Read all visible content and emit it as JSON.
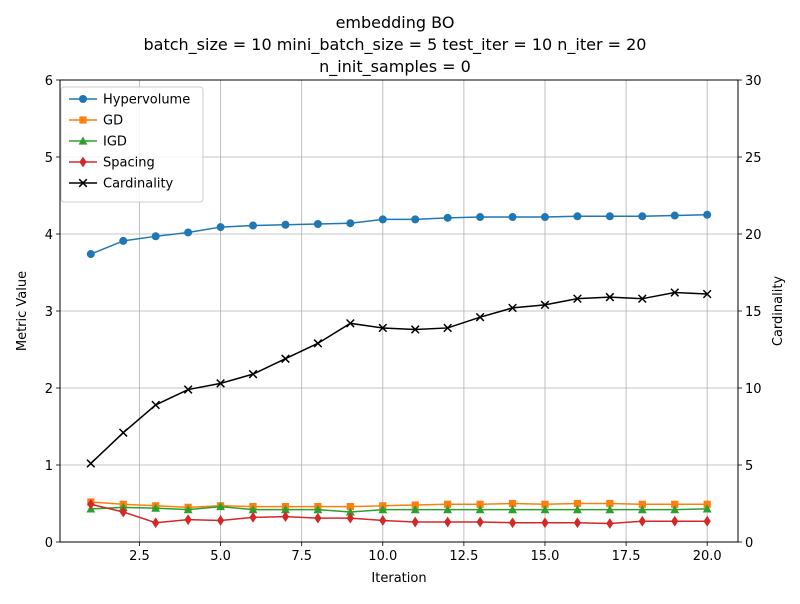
{
  "chart_data": {
    "type": "line",
    "title_lines": [
      "embedding BO",
      "batch_size = 10 mini_batch_size = 5 test_iter = 10 n_iter = 20",
      "n_init_samples = 0"
    ],
    "xlabel": "Iteration",
    "ylabel": "Metric Value",
    "y2label": "Cardinality",
    "xlim": [
      0.05,
      20.95
    ],
    "ylim": [
      0,
      6
    ],
    "y2lim": [
      0,
      30
    ],
    "xticks": [
      2.5,
      5.0,
      7.5,
      10.0,
      12.5,
      15.0,
      17.5,
      20.0
    ],
    "xtick_labels": [
      "2.5",
      "5.0",
      "7.5",
      "10.0",
      "12.5",
      "15.0",
      "17.5",
      "20.0"
    ],
    "yticks": [
      0,
      1,
      2,
      3,
      4,
      5,
      6
    ],
    "ytick_labels": [
      "0",
      "1",
      "2",
      "3",
      "4",
      "5",
      "6"
    ],
    "y2ticks": [
      0,
      5,
      10,
      15,
      20,
      25,
      30
    ],
    "y2tick_labels": [
      "0",
      "5",
      "10",
      "15",
      "20",
      "25",
      "30"
    ],
    "grid": true,
    "legend_position": "top-left",
    "x": [
      1,
      2,
      3,
      4,
      5,
      6,
      7,
      8,
      9,
      10,
      11,
      12,
      13,
      14,
      15,
      16,
      17,
      18,
      19,
      20
    ],
    "series": [
      {
        "name": "Hypervolume",
        "axis": "left",
        "color": "#1f77b4",
        "marker": "circle",
        "values": [
          3.74,
          3.91,
          3.97,
          4.02,
          4.09,
          4.11,
          4.12,
          4.13,
          4.14,
          4.19,
          4.19,
          4.21,
          4.22,
          4.22,
          4.22,
          4.23,
          4.23,
          4.23,
          4.24,
          4.25
        ]
      },
      {
        "name": "GD",
        "axis": "left",
        "color": "#ff7f0e",
        "marker": "square",
        "values": [
          0.52,
          0.49,
          0.47,
          0.45,
          0.47,
          0.46,
          0.46,
          0.46,
          0.46,
          0.47,
          0.48,
          0.49,
          0.49,
          0.5,
          0.49,
          0.5,
          0.5,
          0.49,
          0.49,
          0.49
        ]
      },
      {
        "name": "IGD",
        "axis": "left",
        "color": "#2ca02c",
        "marker": "triangle",
        "values": [
          0.43,
          0.45,
          0.44,
          0.42,
          0.46,
          0.42,
          0.42,
          0.42,
          0.39,
          0.42,
          0.42,
          0.42,
          0.42,
          0.42,
          0.42,
          0.42,
          0.42,
          0.42,
          0.42,
          0.43
        ]
      },
      {
        "name": "Spacing",
        "axis": "left",
        "color": "#d62728",
        "marker": "diamond",
        "values": [
          0.49,
          0.39,
          0.25,
          0.29,
          0.28,
          0.32,
          0.33,
          0.31,
          0.31,
          0.28,
          0.26,
          0.26,
          0.26,
          0.25,
          0.25,
          0.25,
          0.24,
          0.27,
          0.27,
          0.27
        ]
      },
      {
        "name": "Cardinality",
        "axis": "right",
        "color": "#000000",
        "marker": "x",
        "values": [
          5.1,
          7.1,
          8.9,
          9.9,
          10.3,
          10.9,
          11.9,
          12.9,
          14.2,
          13.9,
          13.8,
          13.9,
          14.6,
          15.2,
          15.4,
          15.8,
          15.9,
          15.8,
          16.2,
          16.1
        ]
      }
    ]
  }
}
